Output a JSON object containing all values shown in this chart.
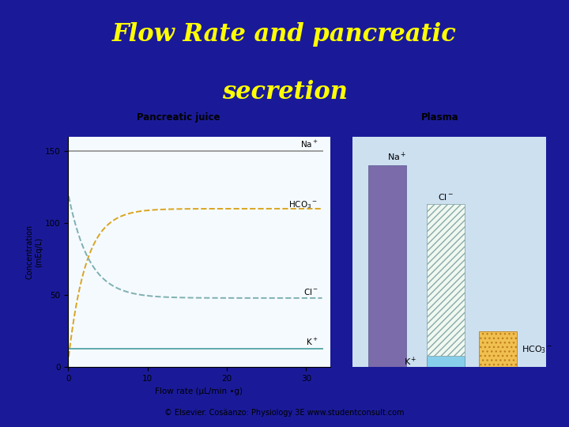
{
  "title_line1": "Flow Rate and pancreatic",
  "title_line2": "secretion",
  "bg_color": "#1a1a99",
  "panel_bg": "#cde0f0",
  "chart_bg": "#f5faff",
  "footer": "© Elsevier. Cosäanzo: Physiology 3E www.studentconsult.com",
  "pancreatic_title": "Pancreatic juice",
  "plasma_title": "Plasma",
  "xlabel": "Flow rate (μL/min •g)",
  "ylabel": "Concentration\n(mEq/L)",
  "xlim": [
    0,
    33
  ],
  "ylim": [
    0,
    160
  ],
  "yticks": [
    0,
    50,
    100,
    150
  ],
  "xticks": [
    0,
    10,
    20,
    30
  ],
  "na_line_color": "#9e9e9e",
  "hco3_color": "#DAA520",
  "cl_color": "#7fb0b0",
  "k_color": "#5faaaa",
  "plasma_na_color": "#7b6baa",
  "plasma_k_color": "#87ceeb",
  "plasma_na_value": 140,
  "plasma_cl_value": 105,
  "plasma_k_value": 8,
  "plasma_hco3_value": 25,
  "footer_bg": "#e0e0e0"
}
